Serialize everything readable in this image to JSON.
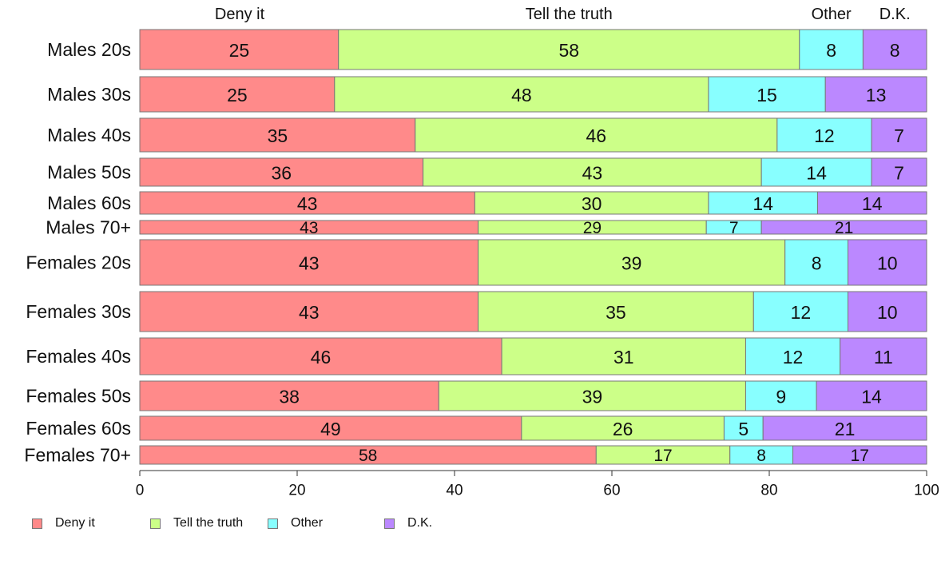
{
  "chart_data": {
    "type": "bar",
    "orientation": "horizontal",
    "stacked": true,
    "title": "",
    "xlabel": "",
    "ylabel": "",
    "xlim": [
      0,
      100
    ],
    "xticks": [
      "0",
      "20",
      "40",
      "60",
      "80",
      "100"
    ],
    "grid": false,
    "legend_position": "bottom",
    "categories": [
      "Males 20s",
      "Males 30s",
      "Males 40s",
      "Males 50s",
      "Males 60s",
      "Males 70+",
      "Females 20s",
      "Females 30s",
      "Females 40s",
      "Females 50s",
      "Females 60s",
      "Females 70+"
    ],
    "series": [
      {
        "name": "Deny it",
        "color": "#ff8a8a",
        "values": [
          25,
          25,
          35,
          36,
          43,
          43,
          43,
          43,
          46,
          38,
          49,
          58
        ]
      },
      {
        "name": "Tell the truth",
        "color": "#ccff88",
        "values": [
          58,
          48,
          46,
          43,
          30,
          29,
          39,
          35,
          31,
          39,
          26,
          17
        ]
      },
      {
        "name": "Other",
        "color": "#88ffff",
        "values": [
          8,
          15,
          12,
          14,
          14,
          7,
          8,
          12,
          12,
          9,
          5,
          8
        ]
      },
      {
        "name": "D.K.",
        "color": "#bb88ff",
        "values": [
          8,
          13,
          7,
          7,
          14,
          21,
          10,
          10,
          11,
          14,
          21,
          17
        ]
      }
    ],
    "top_labels": [
      "Deny it",
      "Tell the truth",
      "Other",
      "D.K."
    ]
  }
}
